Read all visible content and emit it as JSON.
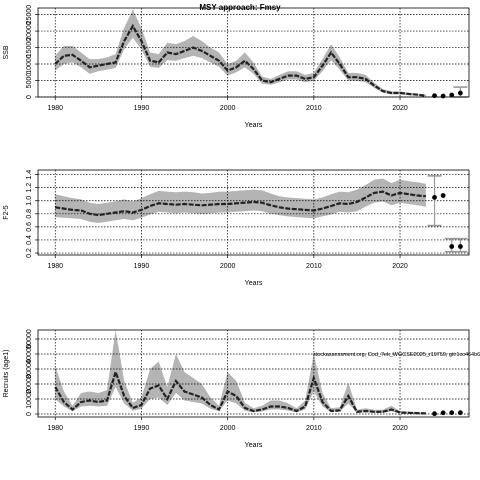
{
  "figure": {
    "title": "MSY approach: Fmsy"
  },
  "chart_data": [
    {
      "type": "line",
      "xlabel": "Years",
      "ylabel": "SSB",
      "xlim": [
        1978,
        2028
      ],
      "ylim": [
        0,
        27000
      ],
      "xticks": [
        1980,
        1990,
        2000,
        2010,
        2020
      ],
      "yticks": [
        0,
        5000,
        10000,
        15000,
        20000,
        25000
      ],
      "grid": true,
      "x": [
        1980,
        1981,
        1982,
        1983,
        1984,
        1985,
        1986,
        1987,
        1988,
        1989,
        1990,
        1991,
        1992,
        1993,
        1994,
        1995,
        1996,
        1997,
        1998,
        1999,
        2000,
        2001,
        2002,
        2003,
        2004,
        2005,
        2006,
        2007,
        2008,
        2009,
        2010,
        2011,
        2012,
        2013,
        2014,
        2015,
        2016,
        2017,
        2018,
        2019,
        2020,
        2021,
        2022,
        2023
      ],
      "series": [
        {
          "values": [
            10000,
            12500,
            12800,
            11000,
            9000,
            9500,
            10000,
            10500,
            17000,
            21500,
            17000,
            11000,
            10500,
            13500,
            13000,
            14000,
            15000,
            14000,
            12500,
            11000,
            8000,
            9000,
            11000,
            8500,
            5000,
            4500,
            5500,
            6500,
            6500,
            5500,
            6000,
            9500,
            13500,
            10000,
            6000,
            6000,
            5500,
            3500,
            1800,
            1200,
            1200,
            900,
            700,
            400
          ]
        }
      ],
      "band": {
        "lower": [
          8000,
          10000,
          10500,
          9000,
          7000,
          7800,
          8300,
          8800,
          14500,
          18000,
          14500,
          9200,
          8800,
          11200,
          11000,
          11800,
          12500,
          11800,
          10500,
          9200,
          6500,
          7500,
          9000,
          7000,
          4000,
          3700,
          4500,
          5300,
          5300,
          4500,
          4900,
          7800,
          11200,
          8300,
          4900,
          4900,
          4500,
          2800,
          1300,
          800,
          800,
          600,
          450,
          200
        ],
        "upper": [
          12500,
          15500,
          15500,
          13500,
          11500,
          11500,
          12000,
          13000,
          21000,
          26500,
          21000,
          13500,
          13000,
          16500,
          16000,
          17000,
          18500,
          17000,
          15000,
          13500,
          10000,
          11000,
          13500,
          10500,
          6200,
          5500,
          6700,
          7800,
          7800,
          6700,
          7300,
          11500,
          16000,
          12000,
          7300,
          7300,
          6700,
          4300,
          2400,
          1700,
          1700,
          1300,
          1000,
          700
        ]
      },
      "forecast": {
        "x": [
          2024,
          2025,
          2026,
          2027
        ],
        "values": [
          400,
          300,
          600,
          1200
        ],
        "lower": [
          null,
          null,
          null,
          0
        ],
        "upper": [
          null,
          null,
          null,
          3000
        ]
      }
    },
    {
      "type": "line",
      "xlabel": "Years",
      "ylabel": "F2-5",
      "xlim": [
        1978,
        2028
      ],
      "ylim": [
        0.17,
        1.47
      ],
      "xticks": [
        1980,
        1990,
        2000,
        2010,
        2020
      ],
      "yticks": [
        0.2,
        0.4,
        0.6,
        0.8,
        1.0,
        1.2,
        1.4
      ],
      "ytick_labels": [
        "0.2",
        "0.4",
        "0.6",
        "0.8",
        "1.0",
        "1.2",
        "1.4"
      ],
      "grid": true,
      "x": [
        1980,
        1981,
        1982,
        1983,
        1984,
        1985,
        1986,
        1987,
        1988,
        1989,
        1990,
        1991,
        1992,
        1993,
        1994,
        1995,
        1996,
        1997,
        1998,
        1999,
        2000,
        2001,
        2002,
        2003,
        2004,
        2005,
        2006,
        2007,
        2008,
        2009,
        2010,
        2011,
        2012,
        2013,
        2014,
        2015,
        2016,
        2017,
        2018,
        2019,
        2020,
        2021,
        2022,
        2023
      ],
      "series": [
        {
          "values": [
            0.9,
            0.88,
            0.86,
            0.85,
            0.8,
            0.78,
            0.8,
            0.82,
            0.84,
            0.82,
            0.86,
            0.92,
            0.96,
            0.95,
            0.94,
            0.95,
            0.94,
            0.93,
            0.94,
            0.95,
            0.95,
            0.96,
            0.97,
            0.98,
            0.97,
            0.93,
            0.9,
            0.88,
            0.87,
            0.86,
            0.85,
            0.88,
            0.92,
            0.96,
            0.95,
            0.98,
            1.05,
            1.12,
            1.14,
            1.08,
            1.12,
            1.1,
            1.08,
            1.07
          ]
        }
      ],
      "band": {
        "lower": [
          0.75,
          0.74,
          0.73,
          0.72,
          0.68,
          0.66,
          0.68,
          0.7,
          0.72,
          0.7,
          0.74,
          0.79,
          0.83,
          0.82,
          0.81,
          0.82,
          0.81,
          0.8,
          0.81,
          0.82,
          0.82,
          0.83,
          0.84,
          0.85,
          0.84,
          0.8,
          0.78,
          0.76,
          0.75,
          0.74,
          0.73,
          0.76,
          0.79,
          0.83,
          0.82,
          0.84,
          0.91,
          0.97,
          0.99,
          0.93,
          0.97,
          0.95,
          0.93,
          0.91
        ],
        "upper": [
          1.1,
          1.07,
          1.04,
          1.02,
          0.97,
          0.95,
          0.97,
          0.99,
          1.02,
          0.99,
          1.04,
          1.1,
          1.15,
          1.14,
          1.13,
          1.14,
          1.13,
          1.11,
          1.12,
          1.14,
          1.14,
          1.15,
          1.16,
          1.17,
          1.16,
          1.11,
          1.07,
          1.05,
          1.04,
          1.03,
          1.02,
          1.05,
          1.1,
          1.14,
          1.13,
          1.17,
          1.24,
          1.32,
          1.34,
          1.27,
          1.32,
          1.3,
          1.28,
          1.26
        ]
      },
      "forecast": {
        "x": [
          2024,
          2025,
          2026,
          2027
        ],
        "values": [
          1.05,
          1.08,
          0.3,
          0.3
        ],
        "lower": [
          0.62,
          null,
          0.22,
          0.22
        ],
        "upper": [
          1.38,
          null,
          0.42,
          0.42
        ]
      }
    },
    {
      "type": "line",
      "xlabel": "Years",
      "ylabel": "Recruits (age1)",
      "xlim": [
        1978,
        2028
      ],
      "ylim": [
        -2000,
        56000
      ],
      "xticks": [
        1980,
        1990,
        2000,
        2010,
        2020
      ],
      "yticks": [
        0,
        10000,
        20000,
        30000,
        40000,
        50000
      ],
      "grid": true,
      "annotation": "stockassessment.org, Cod_7ek_WGCSE2025_r19759, git:1cc464b60b",
      "x": [
        1980,
        1981,
        1982,
        1983,
        1984,
        1985,
        1986,
        1987,
        1988,
        1989,
        1990,
        1991,
        1992,
        1993,
        1994,
        1995,
        1996,
        1997,
        1998,
        1999,
        2000,
        2001,
        2002,
        2003,
        2004,
        2005,
        2006,
        2007,
        2008,
        2009,
        2010,
        2011,
        2012,
        2013,
        2014,
        2015,
        2016,
        2017,
        2018,
        2019,
        2020,
        2021,
        2022,
        2023
      ],
      "series": [
        {
          "values": [
            18000,
            8000,
            3000,
            8000,
            9000,
            8000,
            9000,
            28000,
            12000,
            4000,
            6000,
            17000,
            19000,
            10000,
            22000,
            15000,
            13000,
            11000,
            6000,
            3000,
            15000,
            12000,
            4000,
            2000,
            3000,
            5000,
            5000,
            4000,
            2000,
            5000,
            24000,
            8000,
            2000,
            2500,
            12000,
            1500,
            2000,
            1500,
            1500,
            3000,
            1000,
            800,
            600,
            400
          ]
        }
      ],
      "band": {
        "lower": [
          10000,
          5000,
          1800,
          5000,
          5500,
          5000,
          5500,
          18000,
          7000,
          2200,
          3500,
          10000,
          11000,
          6000,
          14000,
          9000,
          8000,
          7000,
          3500,
          1800,
          9000,
          7000,
          2200,
          1000,
          1700,
          3000,
          3000,
          2300,
          1200,
          3000,
          15000,
          5000,
          1200,
          1500,
          7000,
          800,
          1200,
          800,
          800,
          1800,
          500,
          400,
          300,
          150
        ],
        "upper": [
          32000,
          15000,
          5500,
          14000,
          15000,
          14000,
          16000,
          56000,
          22000,
          7500,
          11000,
          30000,
          35000,
          18000,
          40000,
          28000,
          24000,
          20000,
          11000,
          5500,
          28000,
          22000,
          7500,
          3800,
          5500,
          9000,
          9000,
          7200,
          3800,
          9000,
          40000,
          14000,
          3800,
          4500,
          21000,
          2800,
          3800,
          2800,
          2800,
          5500,
          1900,
          1500,
          1200,
          800
        ]
      },
      "forecast": {
        "x": [
          2024,
          2025,
          2026,
          2027
        ],
        "values": [
          200,
          800,
          900,
          900
        ],
        "lower": [
          null,
          null,
          null,
          null
        ],
        "upper": [
          null,
          null,
          null,
          null
        ]
      }
    }
  ]
}
